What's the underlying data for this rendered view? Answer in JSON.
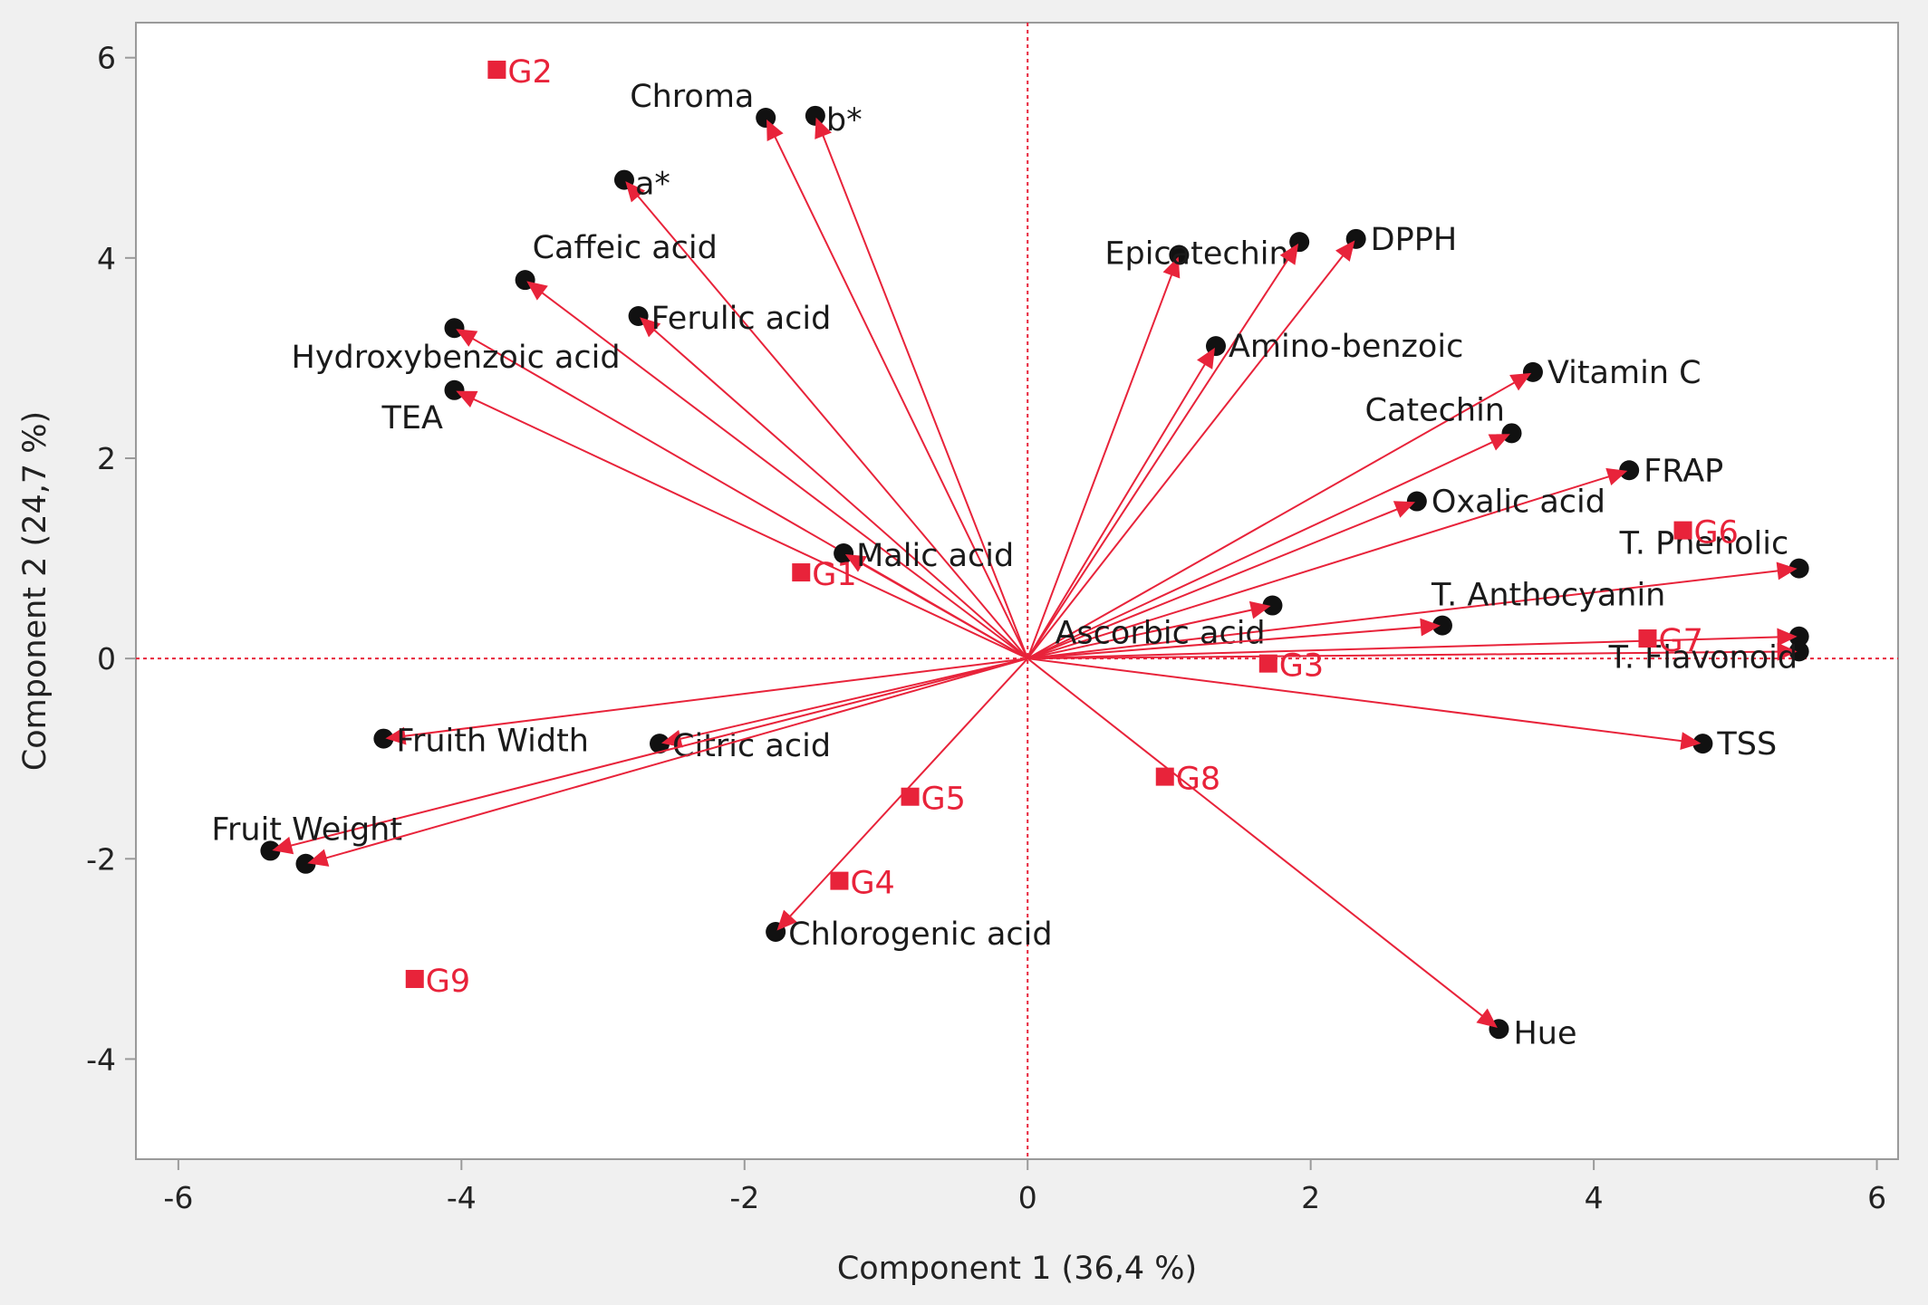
{
  "chart_data": {
    "type": "scatter",
    "subtype": "pca-biplot",
    "xlabel": "Component 1  (36,4 %)",
    "ylabel": "Component 2  (24,7 %)",
    "xlim": [
      -6.3,
      6.15
    ],
    "ylim": [
      -5.0,
      6.35
    ],
    "xticks": [
      -6,
      -4,
      -2,
      0,
      2,
      4,
      6
    ],
    "yticks": [
      -4,
      -2,
      0,
      2,
      4,
      6
    ],
    "xtick_labels": [
      "-6",
      "-4",
      "-2",
      "0",
      "2",
      "4",
      "6"
    ],
    "ytick_labels": [
      "-4",
      "-2",
      "0",
      "2",
      "4",
      "6"
    ],
    "grid": false,
    "reference_lines": {
      "x": 0,
      "y": 0,
      "style": "dotted",
      "color": "#e8233a"
    },
    "colors": {
      "vector": "#e8233a",
      "variable_point": "#111111",
      "observation": "#e8233a",
      "observation_label": "#e8233a",
      "plot_background": "#ffffff",
      "outer_background": "#f0f0f0",
      "frame": "#9a9a9a"
    },
    "variables": [
      {
        "label": "Chroma",
        "x": -1.85,
        "y": 5.4
      },
      {
        "label": "b*",
        "x": -1.5,
        "y": 5.42
      },
      {
        "label": "a*",
        "x": -2.85,
        "y": 4.78
      },
      {
        "label": "Caffeic acid",
        "x": -3.55,
        "y": 3.78
      },
      {
        "label": "Ferulic acid",
        "x": -2.75,
        "y": 3.42
      },
      {
        "label": "Hydroxybenzoic acid",
        "x": -4.05,
        "y": 3.3
      },
      {
        "label": "TEA",
        "x": -4.05,
        "y": 2.68
      },
      {
        "label": "Malic acid",
        "x": -1.3,
        "y": 1.05
      },
      {
        "label": "Epicatechin",
        "x": 1.07,
        "y": 4.03
      },
      {
        "label": "",
        "x": 1.92,
        "y": 4.16
      },
      {
        "label": "DPPH",
        "x": 2.32,
        "y": 4.19
      },
      {
        "label": "Amino-benzoic",
        "x": 1.33,
        "y": 3.12
      },
      {
        "label": "Vitamin C",
        "x": 3.57,
        "y": 2.86
      },
      {
        "label": "Catechin",
        "x": 3.42,
        "y": 2.25
      },
      {
        "label": "FRAP",
        "x": 4.25,
        "y": 1.88
      },
      {
        "label": "Oxalic acid",
        "x": 2.75,
        "y": 1.57
      },
      {
        "label": "T. Phenolic",
        "x": 5.45,
        "y": 0.9
      },
      {
        "label": "Ascorbic acid",
        "x": 1.73,
        "y": 0.53
      },
      {
        "label": "T. Anthocyanin",
        "x": 2.93,
        "y": 0.33
      },
      {
        "label": "",
        "x": 5.45,
        "y": 0.22
      },
      {
        "label": "T. Flavonoid",
        "x": 5.45,
        "y": 0.07
      },
      {
        "label": "TSS",
        "x": 4.77,
        "y": -0.85
      },
      {
        "label": "Hue",
        "x": 3.33,
        "y": -3.7
      },
      {
        "label": "Fruith Width",
        "x": -4.55,
        "y": -0.8
      },
      {
        "label": "Citric acid",
        "x": -2.6,
        "y": -0.85
      },
      {
        "label": "Fruit Weight",
        "x": -5.35,
        "y": -1.92
      },
      {
        "label": "",
        "x": -5.1,
        "y": -2.05
      },
      {
        "label": "Chlorogenic acid",
        "x": -1.78,
        "y": -2.73
      }
    ],
    "observations": [
      {
        "label": "G1",
        "x": -1.6,
        "y": 0.86
      },
      {
        "label": "G2",
        "x": -3.75,
        "y": 5.88
      },
      {
        "label": "G3",
        "x": 1.7,
        "y": -0.05
      },
      {
        "label": "G4",
        "x": -1.33,
        "y": -2.22
      },
      {
        "label": "G5",
        "x": -0.83,
        "y": -1.38
      },
      {
        "label": "G6",
        "x": 4.63,
        "y": 1.28
      },
      {
        "label": "G7",
        "x": 4.38,
        "y": 0.2
      },
      {
        "label": "G8",
        "x": 0.97,
        "y": -1.18
      },
      {
        "label": "G9",
        "x": -4.33,
        "y": -3.2
      }
    ]
  }
}
